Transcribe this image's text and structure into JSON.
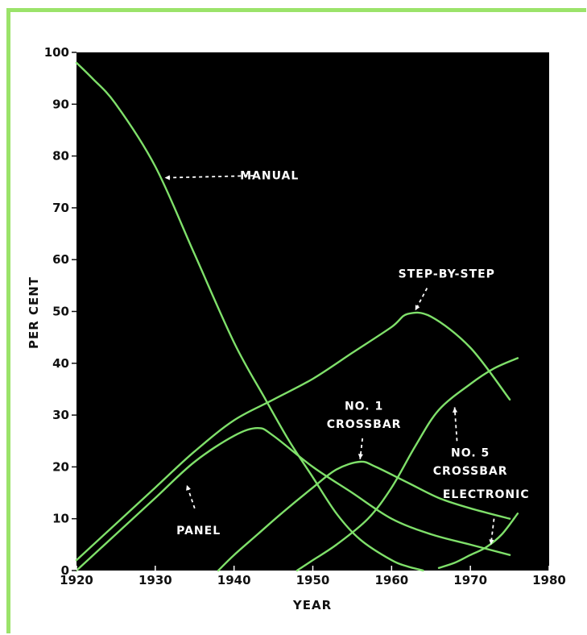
{
  "chart_data": {
    "type": "line",
    "xlabel": "YEAR",
    "ylabel": "PER CENT",
    "xlim": [
      1920,
      1980
    ],
    "ylim": [
      0,
      100
    ],
    "x_ticks": [
      "1920",
      "1930",
      "1940",
      "1950",
      "1960",
      "1970",
      "1980"
    ],
    "y_ticks": [
      "0",
      "10",
      "20",
      "30",
      "40",
      "50",
      "60",
      "70",
      "80",
      "90",
      "100"
    ],
    "series": [
      {
        "name": "MANUAL",
        "x": [
          1920,
          1922,
          1925,
          1930,
          1935,
          1940,
          1944,
          1947,
          1950,
          1953,
          1956,
          1960,
          1962,
          1964
        ],
        "y": [
          98,
          95,
          90,
          78,
          61,
          44,
          33,
          25,
          18,
          11,
          6,
          2,
          0.8,
          0
        ]
      },
      {
        "name": "PANEL",
        "x": [
          1920,
          1925,
          1930,
          1935,
          1940,
          1943,
          1945,
          1950,
          1955,
          1960,
          1965,
          1970,
          1975
        ],
        "y": [
          0,
          7,
          14,
          21,
          26,
          27.5,
          26,
          20,
          15,
          10,
          7,
          5,
          3
        ]
      },
      {
        "name": "STEP-BY-STEP",
        "x": [
          1920,
          1925,
          1930,
          1935,
          1940,
          1945,
          1950,
          1955,
          1960,
          1962,
          1965,
          1970,
          1975
        ],
        "y": [
          2,
          9,
          16,
          23,
          29,
          33,
          37,
          42,
          47,
          49.5,
          49,
          43,
          33
        ]
      },
      {
        "name": "NO. 1 CROSSBAR",
        "x": [
          1938,
          1940,
          1943,
          1946,
          1950,
          1953,
          1956,
          1958,
          1962,
          1966,
          1970,
          1975
        ],
        "y": [
          0,
          3,
          7,
          11,
          16,
          19.5,
          21,
          20,
          17,
          14,
          12,
          10
        ]
      },
      {
        "name": "NO. 5 CROSSBAR",
        "x": [
          1948,
          1950,
          1953,
          1957,
          1960,
          1963,
          1966,
          1970,
          1973,
          1976
        ],
        "y": [
          0,
          2,
          5,
          10,
          16,
          24,
          31,
          36,
          39,
          41
        ]
      },
      {
        "name": "ELECTRONIC",
        "x": [
          1966,
          1968,
          1970,
          1972,
          1974,
          1976
        ],
        "y": [
          0.5,
          1.5,
          3,
          4.5,
          7,
          11
        ]
      }
    ],
    "annotations": [
      {
        "text": "MANUAL",
        "x": 1944.5,
        "y": 75.5
      },
      {
        "text": "STEP-BY-STEP",
        "x": 1967,
        "y": 56.5
      },
      {
        "text": "NO. 1",
        "x": 1956.5,
        "y": 31
      },
      {
        "text": "CROSSBAR",
        "x": 1956.5,
        "y": 27.5
      },
      {
        "text": "NO. 5",
        "x": 1970,
        "y": 22
      },
      {
        "text": "CROSSBAR",
        "x": 1970,
        "y": 18.5
      },
      {
        "text": "ELECTRONIC",
        "x": 1972,
        "y": 14
      },
      {
        "text": "PANEL",
        "x": 1935.5,
        "y": 7
      }
    ],
    "grid": false,
    "line_color": "#7fe06a",
    "background": "#000000"
  }
}
